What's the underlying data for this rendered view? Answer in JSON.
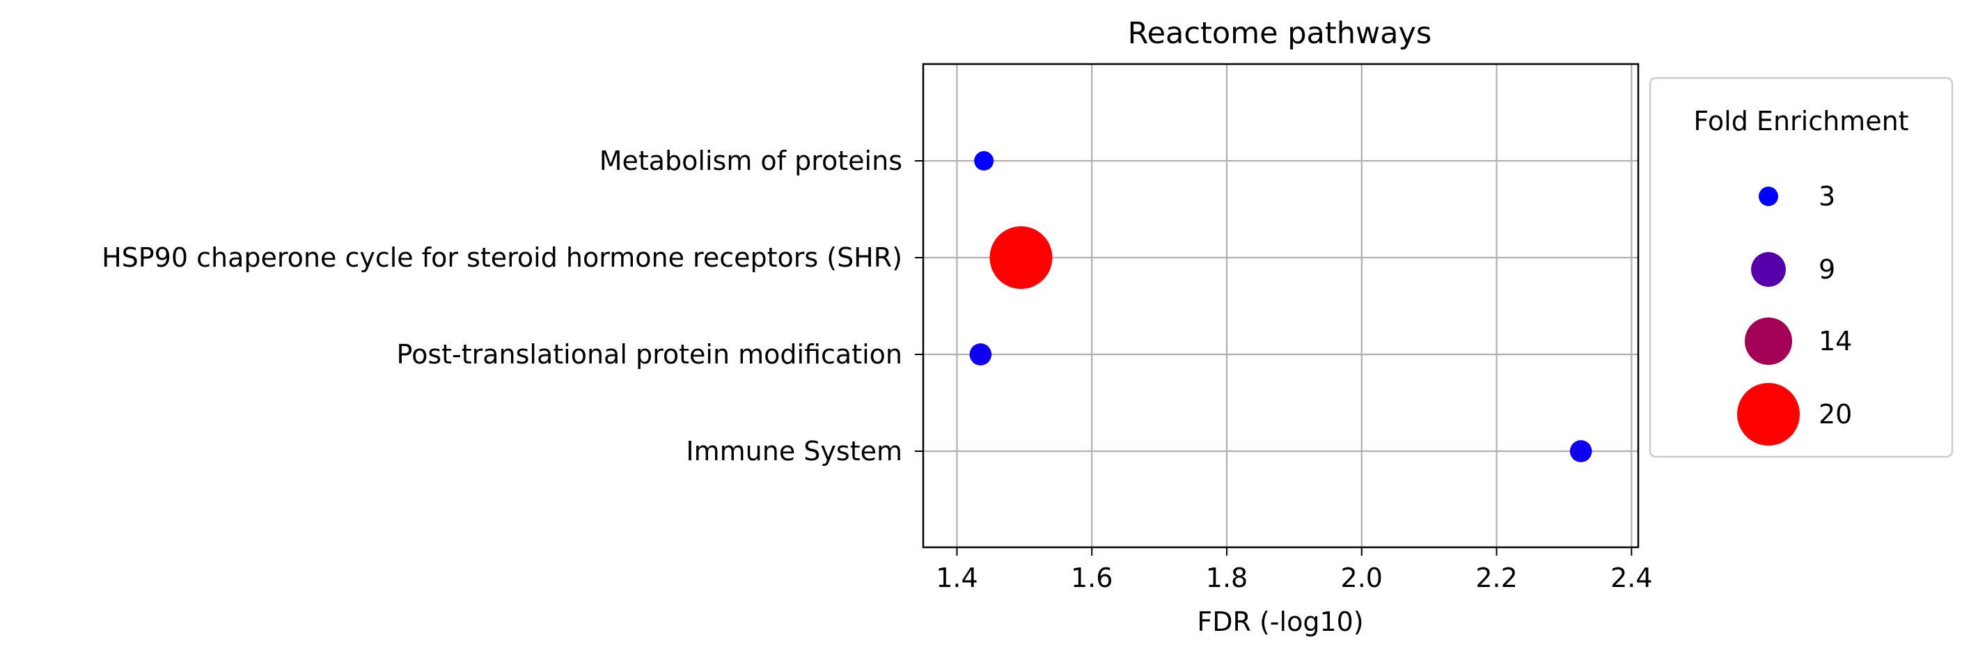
{
  "chart_data": {
    "type": "scatter",
    "title": "Reactome pathways",
    "xlabel": "FDR (-log10)",
    "ylabel": "",
    "xlim": [
      1.35,
      2.41
    ],
    "x_ticks": [
      "1.4",
      "1.6",
      "1.8",
      "2.0",
      "2.2",
      "2.4"
    ],
    "grid": true,
    "categories": [
      "Metabolism of proteins",
      "HSP90 chaperone cycle for steroid hormone receptors (SHR)",
      "Post-translational protein modification",
      "Immune System"
    ],
    "points": [
      {
        "category": "Metabolism of proteins",
        "x": 1.44,
        "fold_enrichment": 3
      },
      {
        "category": "HSP90 chaperone cycle for steroid hormone receptors (SHR)",
        "x": 1.495,
        "fold_enrichment": 20
      },
      {
        "category": "Post-translational protein modification",
        "x": 1.435,
        "fold_enrichment": 4
      },
      {
        "category": "Immune System",
        "x": 2.325,
        "fold_enrichment": 4
      }
    ],
    "legend": {
      "title": "Fold Enrichment",
      "placement": "right",
      "entries": [
        {
          "label": "3",
          "value": 3,
          "color": "#0000ff"
        },
        {
          "label": "9",
          "value": 9,
          "color": "#5500aa"
        },
        {
          "label": "14",
          "value": 14,
          "color": "#a40055"
        },
        {
          "label": "20",
          "value": 20,
          "color": "#ff0000"
        }
      ]
    },
    "color_scale": {
      "low": "#0000ff",
      "high": "#ff0000",
      "min": 3,
      "max": 20
    }
  }
}
